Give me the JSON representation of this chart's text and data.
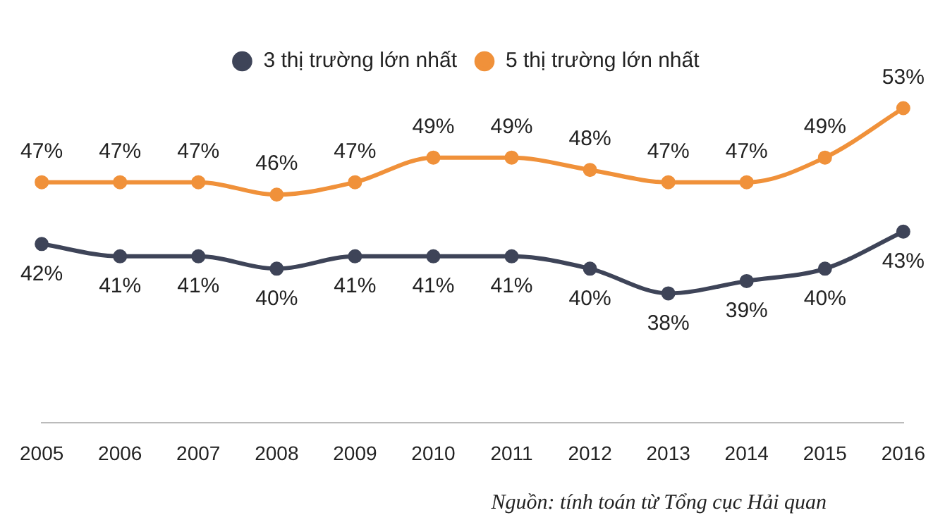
{
  "chart_data": {
    "type": "line",
    "categories": [
      "2005",
      "2006",
      "2007",
      "2008",
      "2009",
      "2010",
      "2011",
      "2012",
      "2013",
      "2014",
      "2015",
      "2016"
    ],
    "series": [
      {
        "name": "3 thị trường lớn nhất",
        "color": "#3e4458",
        "values": [
          42,
          41,
          41,
          40,
          41,
          41,
          41,
          40,
          38,
          39,
          40,
          43
        ],
        "value_labels": [
          "42%",
          "41%",
          "41%",
          "40%",
          "41%",
          "41%",
          "41%",
          "40%",
          "38%",
          "39%",
          "40%",
          "43%"
        ]
      },
      {
        "name": "5 thị trường lớn nhất",
        "color": "#f0913a",
        "values": [
          47,
          47,
          47,
          46,
          47,
          49,
          49,
          48,
          47,
          47,
          49,
          53
        ],
        "value_labels": [
          "47%",
          "47%",
          "47%",
          "46%",
          "47%",
          "49%",
          "49%",
          "48%",
          "47%",
          "47%",
          "49%",
          "53%"
        ]
      }
    ],
    "grid": false,
    "legend": "top",
    "marker": "circle",
    "line_style": "solid",
    "tick_labels": "x",
    "annotations": [
      "Nguồn: tính toán từ Tổng cục Hải quan"
    ]
  }
}
